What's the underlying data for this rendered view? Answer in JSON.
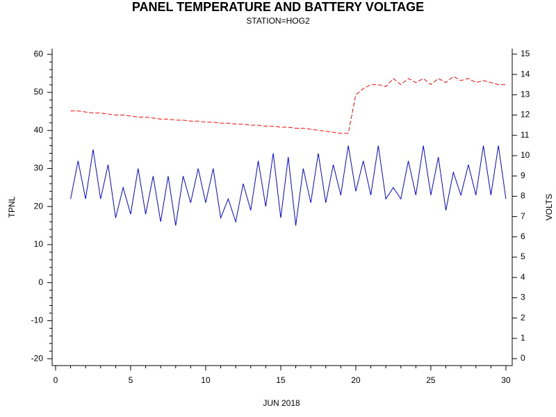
{
  "chart_data": {
    "type": "line",
    "title": "PANEL TEMPERATURE AND BATTERY VOLTAGE",
    "subtitle": "STATION=HOG2",
    "xlabel": "JUN 2018",
    "ylabel": "TPNL",
    "y2label": "VOLTS",
    "x": [
      1,
      1.5,
      2,
      2.5,
      3,
      3.5,
      4,
      4.5,
      5,
      5.5,
      6,
      6.5,
      7,
      7.5,
      8,
      8.5,
      9,
      9.5,
      10,
      10.5,
      11,
      11.5,
      12,
      12.5,
      13,
      13.5,
      14,
      14.5,
      15,
      15.5,
      16,
      16.5,
      17,
      17.5,
      18,
      18.5,
      19,
      19.5,
      20,
      20.5,
      21,
      21.5,
      22,
      22.5,
      23,
      23.5,
      24,
      24.5,
      25,
      25.5,
      26,
      26.5,
      27,
      27.5,
      28,
      28.5,
      29,
      29.5,
      30
    ],
    "series": [
      {
        "color": "#0000ff",
        "axis": "y",
        "dash": false,
        "values": [
          22,
          32,
          22,
          35,
          22,
          31,
          17,
          25,
          18,
          30,
          18,
          28,
          16,
          28,
          15,
          28,
          21,
          30,
          21,
          30,
          17,
          22,
          16,
          26,
          19,
          32,
          20,
          34,
          17,
          33,
          15,
          30,
          21,
          34,
          21,
          31,
          23,
          36,
          24,
          32,
          23,
          36,
          22,
          25,
          22,
          32,
          23,
          36,
          23,
          33,
          19,
          29,
          23,
          31,
          23,
          36,
          23,
          36,
          22
        ]
      },
      {
        "color": "#ff0000",
        "axis": "y2",
        "dash": true,
        "values": [
          12.2,
          12.2,
          12.15,
          12.1,
          12.1,
          12.05,
          12.0,
          12.0,
          11.95,
          11.9,
          11.9,
          11.85,
          11.8,
          11.8,
          11.75,
          11.75,
          11.7,
          11.7,
          11.65,
          11.65,
          11.6,
          11.6,
          11.55,
          11.55,
          11.5,
          11.5,
          11.45,
          11.45,
          11.4,
          11.4,
          11.35,
          11.35,
          11.3,
          11.25,
          11.2,
          11.15,
          11.1,
          11.1,
          13.0,
          13.3,
          13.5,
          13.5,
          13.4,
          13.8,
          13.5,
          13.8,
          13.6,
          13.8,
          13.5,
          13.8,
          13.6,
          13.9,
          13.7,
          13.8,
          13.6,
          13.7,
          13.6,
          13.5,
          13.5
        ]
      }
    ],
    "xlim": [
      -0.23,
      30.42
    ],
    "xticks": [
      0,
      5,
      10,
      15,
      20,
      25,
      30
    ],
    "ylim": [
      -21.8,
      61.5
    ],
    "yticks": [
      -20,
      -10,
      0,
      10,
      20,
      30,
      40,
      50,
      60
    ],
    "y2lim": [
      -0.34,
      15.27
    ],
    "y2ticks": [
      0,
      1,
      2,
      3,
      4,
      5,
      6,
      7,
      8,
      9,
      10,
      11,
      12,
      13,
      14,
      15
    ]
  }
}
